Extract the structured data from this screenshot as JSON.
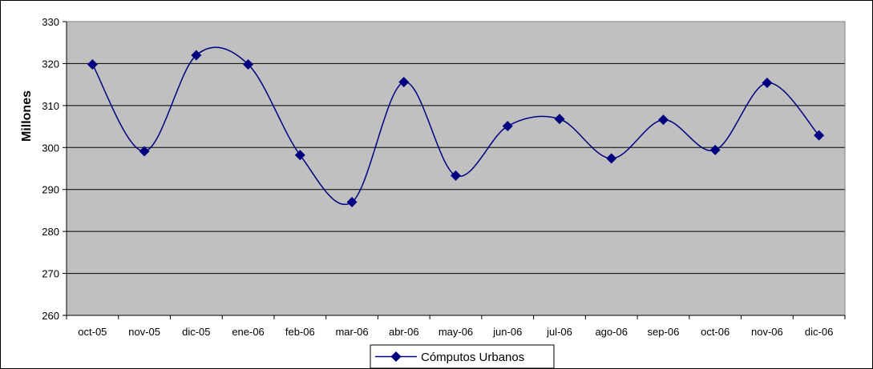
{
  "chart_data": {
    "type": "line",
    "title": "",
    "xlabel": "",
    "ylabel": "Millones",
    "ylim": [
      260,
      330
    ],
    "yticks": [
      260,
      270,
      280,
      290,
      300,
      310,
      320,
      330
    ],
    "categories": [
      "oct-05",
      "nov-05",
      "dic-05",
      "ene-06",
      "feb-06",
      "mar-06",
      "abr-06",
      "may-06",
      "jun-06",
      "jul-06",
      "ago-06",
      "sep-06",
      "oct-06",
      "nov-06",
      "dic-06"
    ],
    "series": [
      {
        "name": "Cómputos Urbanos",
        "values": [
          319.8,
          299.1,
          322,
          319.8,
          298.2,
          287,
          315.6,
          293.3,
          305.1,
          306.8,
          297.4,
          306.6,
          299.4,
          315.4,
          302.9
        ],
        "color": "#000080",
        "marker": "diamond"
      }
    ],
    "grid": true,
    "plot_background": "#c0c0c0",
    "legend_position": "bottom"
  }
}
